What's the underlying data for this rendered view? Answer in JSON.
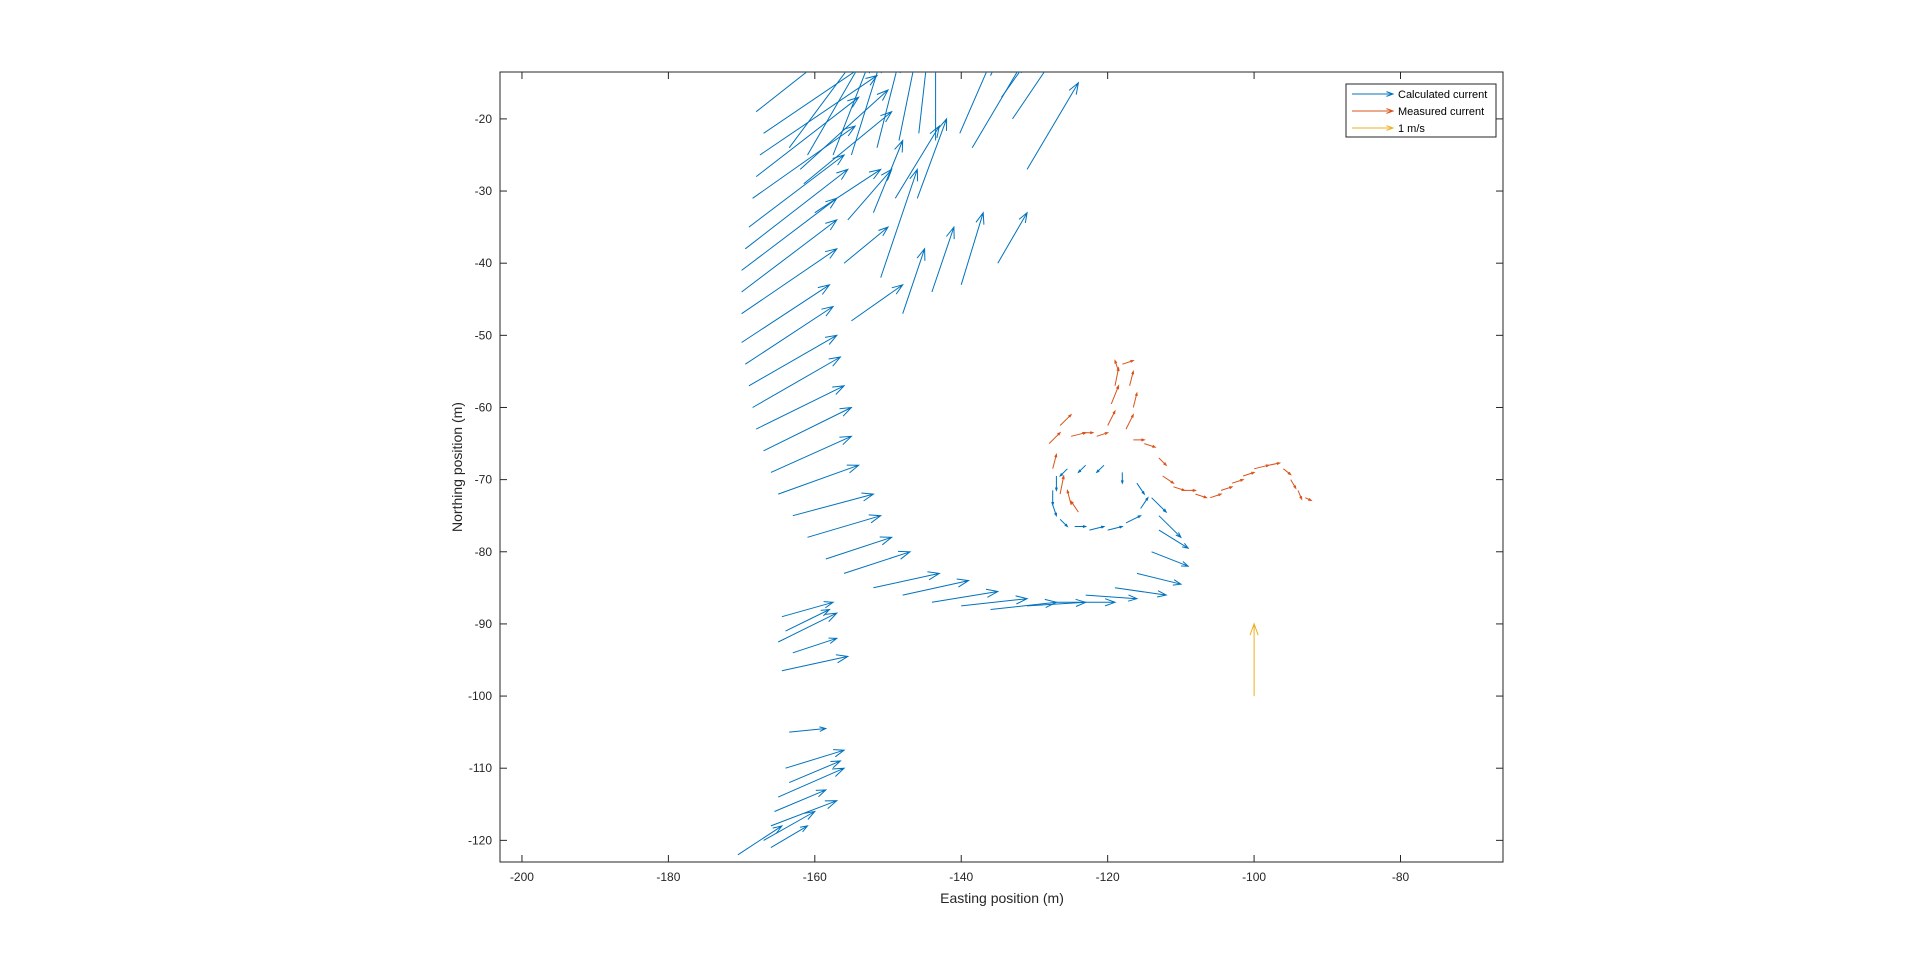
{
  "figure": {
    "background": "#ffffff"
  },
  "chart_data": {
    "type": "quiver",
    "xlabel": "Easting position (m)",
    "ylabel": "Northing position (m)",
    "xlim": [
      -203,
      -66
    ],
    "ylim": [
      -123,
      -13.5
    ],
    "xticks": [
      -200,
      -180,
      -160,
      -140,
      -120,
      -100,
      -80
    ],
    "yticks": [
      -20,
      -30,
      -40,
      -50,
      -60,
      -70,
      -80,
      -90,
      -100,
      -110,
      -120
    ],
    "grid": false,
    "legend": {
      "location": "top-right",
      "entries": [
        "Calculated current",
        "Measured current",
        "1 m/s"
      ]
    },
    "series": [
      {
        "name": "Calculated current",
        "color": "#0072BD",
        "arrows": [
          [
            -140.2,
            -22,
            6,
            14
          ],
          [
            -138.5,
            -24,
            7,
            12
          ],
          [
            -136,
            -14,
            6,
            12
          ],
          [
            -134.5,
            -17,
            7,
            10
          ],
          [
            -133,
            -20,
            8,
            12
          ],
          [
            -131,
            -27,
            7,
            12
          ],
          [
            -145.8,
            -22,
            2,
            18
          ],
          [
            -143.5,
            -23,
            0,
            20
          ],
          [
            -148.5,
            -23,
            3,
            15
          ],
          [
            -151.5,
            -24,
            3,
            12
          ],
          [
            -155,
            -25,
            4,
            13
          ],
          [
            -152,
            -33,
            4,
            10
          ],
          [
            -149,
            -31,
            6,
            10
          ],
          [
            -146,
            -31,
            4,
            11
          ],
          [
            -157.5,
            -25,
            5,
            13
          ],
          [
            -161,
            -25,
            8,
            14
          ],
          [
            -163.5,
            -24,
            11,
            15
          ],
          [
            -161.5,
            -29,
            12,
            10
          ],
          [
            -162,
            -27,
            12,
            11
          ],
          [
            -160,
            -33,
            9,
            6
          ],
          [
            -155.5,
            -34,
            6,
            7
          ],
          [
            -156,
            -40,
            6,
            5
          ],
          [
            -151,
            -42,
            5,
            15
          ],
          [
            -155,
            -48,
            7,
            5
          ],
          [
            -148,
            -47,
            3,
            9
          ],
          [
            -144,
            -44,
            3,
            9
          ],
          [
            -140,
            -43,
            3,
            10
          ],
          [
            -135,
            -40,
            4,
            7
          ],
          [
            -168,
            -19,
            15,
            12
          ],
          [
            -167,
            -22,
            16,
            11
          ],
          [
            -167.5,
            -25,
            16,
            11
          ],
          [
            -168,
            -28,
            14,
            11
          ],
          [
            -168.5,
            -31,
            14,
            10
          ],
          [
            -169,
            -35,
            13,
            10
          ],
          [
            -169.5,
            -38,
            14,
            11
          ],
          [
            -170,
            -41,
            13,
            10
          ],
          [
            -170,
            -44,
            13,
            10
          ],
          [
            -170,
            -47,
            13,
            9
          ],
          [
            -170,
            -51,
            12,
            8
          ],
          [
            -169.5,
            -54,
            12,
            8
          ],
          [
            -169,
            -57,
            12,
            7
          ],
          [
            -168.5,
            -60,
            12,
            7
          ],
          [
            -168,
            -63,
            12,
            6
          ],
          [
            -167,
            -66,
            12,
            6
          ],
          [
            -166,
            -69,
            11,
            5
          ],
          [
            -165,
            -72,
            11,
            4
          ],
          [
            -163,
            -75,
            11,
            3
          ],
          [
            -161,
            -78,
            10,
            3
          ],
          [
            -158.5,
            -81,
            9,
            3
          ],
          [
            -156,
            -83,
            9,
            3
          ],
          [
            -152,
            -85,
            9,
            2
          ],
          [
            -148,
            -86,
            9,
            2
          ],
          [
            -144,
            -87,
            9,
            1.5
          ],
          [
            -140,
            -87.5,
            9,
            1
          ],
          [
            -136,
            -88,
            9,
            1
          ],
          [
            -131,
            -87.5,
            8,
            0.5
          ],
          [
            -127,
            -87,
            8,
            0
          ],
          [
            -123,
            -86,
            7,
            -0.5
          ],
          [
            -119,
            -85,
            7,
            -1
          ],
          [
            -116,
            -83,
            6,
            -1.5
          ],
          [
            -114,
            -80,
            5,
            -2
          ],
          [
            -113,
            -77,
            4,
            -2.5
          ],
          [
            -113,
            -75,
            3,
            -3
          ],
          [
            -114,
            -72.5,
            2,
            -2
          ],
          [
            -116,
            -70.5,
            1,
            -1.5
          ],
          [
            -118,
            -69,
            0,
            -1.5
          ],
          [
            -120.5,
            -68,
            -1,
            -1
          ],
          [
            -123,
            -68,
            -1,
            -1
          ],
          [
            -125.5,
            -68.5,
            -1,
            -1
          ],
          [
            -127,
            -69.5,
            0,
            -2
          ],
          [
            -127.5,
            -71.5,
            0,
            -2
          ],
          [
            -127.5,
            -73.5,
            0.5,
            -1.5
          ],
          [
            -126.5,
            -75.5,
            1,
            -1
          ],
          [
            -124.5,
            -76.5,
            1.5,
            0
          ],
          [
            -122.5,
            -77,
            2,
            0.5
          ],
          [
            -120,
            -77,
            2,
            0.5
          ],
          [
            -117.5,
            -76,
            2,
            1
          ],
          [
            -115.5,
            -74,
            1,
            1.5
          ],
          [
            -164.5,
            -89,
            7,
            2
          ],
          [
            -164,
            -91,
            6,
            3
          ],
          [
            -165,
            -92.5,
            8,
            4
          ],
          [
            -163,
            -94,
            6,
            2
          ],
          [
            -164.5,
            -96.5,
            9,
            2
          ],
          [
            -163.5,
            -105,
            5,
            0.5
          ],
          [
            -164,
            -110,
            8,
            2.5
          ],
          [
            -163.5,
            -112,
            7,
            3
          ],
          [
            -165,
            -114,
            9,
            4
          ],
          [
            -165.5,
            -116,
            7,
            3
          ],
          [
            -166,
            -118,
            9,
            3.5
          ],
          [
            -167,
            -120,
            7,
            4
          ],
          [
            -166,
            -121,
            5,
            3
          ],
          [
            -170.5,
            -122,
            6,
            4
          ]
        ]
      },
      {
        "name": "Measured current",
        "color": "#D95319",
        "arrows": [
          [
            -128,
            -65,
            1.5,
            1.5
          ],
          [
            -126.5,
            -62.5,
            1.5,
            1.5
          ],
          [
            -125,
            -64,
            2,
            0.5
          ],
          [
            -123.5,
            -63.5,
            1.5,
            0
          ],
          [
            -121.5,
            -64,
            1.5,
            0.5
          ],
          [
            -120,
            -62.5,
            1,
            2
          ],
          [
            -119.5,
            -59.5,
            1,
            2.5
          ],
          [
            -119,
            -57,
            0.5,
            2.5
          ],
          [
            -118.5,
            -55,
            -0.5,
            1.5
          ],
          [
            -118,
            -54,
            1.5,
            0.5
          ],
          [
            -117,
            -57,
            0.5,
            2
          ],
          [
            -116.5,
            -60,
            0.5,
            2
          ],
          [
            -117.5,
            -63,
            1,
            2
          ],
          [
            -116.5,
            -64.5,
            1.5,
            0
          ],
          [
            -115,
            -65,
            1.5,
            -0.5
          ],
          [
            -113,
            -67,
            1,
            -1
          ],
          [
            -112.5,
            -69.5,
            1.5,
            -1
          ],
          [
            -111,
            -71,
            1.5,
            -0.5
          ],
          [
            -109.5,
            -71.5,
            1.5,
            0
          ],
          [
            -108,
            -72,
            1.5,
            -0.5
          ],
          [
            -106,
            -72.5,
            1.5,
            0.5
          ],
          [
            -104.5,
            -71.5,
            1.5,
            0.5
          ],
          [
            -103,
            -70.5,
            1.5,
            0.5
          ],
          [
            -101.5,
            -69.5,
            1.5,
            0.5
          ],
          [
            -100,
            -68.5,
            2,
            0.5
          ],
          [
            -98,
            -68,
            1.5,
            0.3
          ],
          [
            -96,
            -68.5,
            1,
            -0.8
          ],
          [
            -95,
            -70,
            0.7,
            -1.2
          ],
          [
            -94,
            -71.5,
            0.5,
            -1.2
          ],
          [
            -93,
            -72.5,
            0.8,
            -0.4
          ],
          [
            -127.5,
            -68.5,
            0.5,
            2
          ],
          [
            -126.5,
            -72,
            0.5,
            2.5
          ],
          [
            -125,
            -73.5,
            -0.5,
            2
          ],
          [
            -124,
            -74.5,
            -1,
            1.5
          ]
        ]
      },
      {
        "name": "1 m/s",
        "color": "#EDB120",
        "arrows": [
          [
            -100,
            -100,
            0,
            10
          ]
        ]
      }
    ]
  }
}
